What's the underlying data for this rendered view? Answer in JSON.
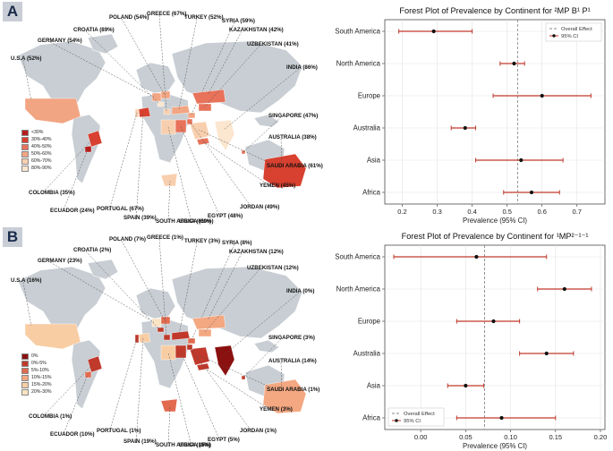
{
  "colors": {
    "ci_line": "#c0392b",
    "point": "#111111",
    "effect_line": "#888888",
    "land": "#c8ced3"
  },
  "panelA": {
    "letter": "A",
    "countries": [
      {
        "id": "usa",
        "label": "U.S.A (52%)"
      },
      {
        "id": "germany",
        "label": "GERMANY (54%)"
      },
      {
        "id": "croatia",
        "label": "CROATIA (89%)"
      },
      {
        "id": "poland",
        "label": "POLAND (54%)"
      },
      {
        "id": "greece",
        "label": "GREECE (67%)"
      },
      {
        "id": "turkey",
        "label": "TURKEY (52%)"
      },
      {
        "id": "syria",
        "label": "SYRIA (59%)"
      },
      {
        "id": "kazakhstan",
        "label": "KAZAKHSTAN (42%)"
      },
      {
        "id": "uzbekistan",
        "label": "UZBEKISTAN (41%)"
      },
      {
        "id": "india",
        "label": "INDIA (86%)"
      },
      {
        "id": "singapore",
        "label": "SINGAPORE (47%)"
      },
      {
        "id": "australia",
        "label": "AUSTRALIA (38%)"
      },
      {
        "id": "saudi",
        "label": "SAUDI ARABIA (61%)"
      },
      {
        "id": "yemen",
        "label": "YEMEN (45%)"
      },
      {
        "id": "jordan",
        "label": "JORDAN (49%)"
      },
      {
        "id": "egypt",
        "label": "EGYPT (48%)"
      },
      {
        "id": "libya",
        "label": "LIBYA (61%)"
      },
      {
        "id": "southafrica",
        "label": "SOUTH AFRICA (60%)"
      },
      {
        "id": "spain",
        "label": "SPAIN (39%)"
      },
      {
        "id": "portugal",
        "label": "PORTUGAL (67%)"
      },
      {
        "id": "ecuador",
        "label": "ECUADOR (24%)"
      },
      {
        "id": "colombia",
        "label": "COLOMBIA (35%)"
      }
    ],
    "legend": [
      {
        "label": "<30%",
        "color": "#b71c1c"
      },
      {
        "label": "30%-40%",
        "color": "#d8402f"
      },
      {
        "label": "40%-50%",
        "color": "#e8725a"
      },
      {
        "label": "50%-60%",
        "color": "#f2a583"
      },
      {
        "label": "60%-70%",
        "color": "#f8cfae"
      },
      {
        "label": "80%-90%",
        "color": "#fbe6cf"
      }
    ]
  },
  "panelB": {
    "letter": "B",
    "countries": [
      {
        "id": "usa",
        "label": "U.S.A (16%)"
      },
      {
        "id": "germany",
        "label": "GERMANY (23%)"
      },
      {
        "id": "croatia",
        "label": "CROATIA (2%)"
      },
      {
        "id": "poland",
        "label": "POLAND (7%)"
      },
      {
        "id": "greece",
        "label": "GREECE (1%)"
      },
      {
        "id": "turkey",
        "label": "TURKEY (3%)"
      },
      {
        "id": "syria",
        "label": "SYRIA (8%)"
      },
      {
        "id": "kazakhstan",
        "label": "KAZAKHSTAN (12%)"
      },
      {
        "id": "uzbekistan",
        "label": "UZBEKISTAN (12%)"
      },
      {
        "id": "india",
        "label": "INDIA (0%)"
      },
      {
        "id": "singapore",
        "label": "SINGAPORE (3%)"
      },
      {
        "id": "australia",
        "label": "AUSTRALIA (14%)"
      },
      {
        "id": "saudi",
        "label": "SAUDI ARABIA (1%)"
      },
      {
        "id": "yemen",
        "label": "YEMEN (3%)"
      },
      {
        "id": "jordan",
        "label": "JORDAN (1%)"
      },
      {
        "id": "egypt",
        "label": "EGYPT (5%)"
      },
      {
        "id": "libya",
        "label": "LIBYA (15%)"
      },
      {
        "id": "southafrica",
        "label": "SOUTH AFRICA (8%)"
      },
      {
        "id": "spain",
        "label": "SPAIN (19%)"
      },
      {
        "id": "portugal",
        "label": "PORTUGAL (1%)"
      },
      {
        "id": "ecuador",
        "label": "ECUADOR (10%)"
      },
      {
        "id": "colombia",
        "label": "COLOMBIA (1%)"
      }
    ],
    "legend": [
      {
        "label": "0%",
        "color": "#8b1010"
      },
      {
        "label": "0%-5%",
        "color": "#c0392b"
      },
      {
        "label": "5%-10%",
        "color": "#e26a4f"
      },
      {
        "label": "10%-15%",
        "color": "#f3a882"
      },
      {
        "label": "15%-20%",
        "color": "#f8cda4"
      },
      {
        "label": "20%-30%",
        "color": "#fbe3c3"
      }
    ]
  },
  "chart_data": [
    {
      "type": "forest",
      "title": "Forest Plot of Prevalence by Continent for ²MP B¹ P¹",
      "xlabel": "Prevalence (95% CI)",
      "xlim": [
        0.15,
        0.78
      ],
      "xticks": [
        0.2,
        0.3,
        0.4,
        0.5,
        0.6,
        0.7
      ],
      "xtick_labels": [
        "0.2",
        "0.3",
        "0.4",
        "0.5",
        "0.6",
        "0.7"
      ],
      "categories": [
        "South America",
        "North America",
        "Europe",
        "Australia",
        "Asia",
        "Africa"
      ],
      "estimate": [
        0.29,
        0.52,
        0.6,
        0.38,
        0.54,
        0.57
      ],
      "ci_low": [
        0.19,
        0.48,
        0.46,
        0.34,
        0.41,
        0.49
      ],
      "ci_high": [
        0.4,
        0.55,
        0.74,
        0.41,
        0.66,
        0.65
      ],
      "overall_effect": 0.53,
      "legend": {
        "position": "top-right",
        "items": [
          "Overall Effect",
          "95% CI"
        ]
      }
    },
    {
      "type": "forest",
      "title": "Forest Plot of Prevalence by Continent for ¹MP²⁻¹⁻¹",
      "xlabel": "Prevalence (95% CI)",
      "xlim": [
        -0.04,
        0.205
      ],
      "xticks": [
        0.0,
        0.05,
        0.1,
        0.15,
        0.2
      ],
      "xtick_labels": [
        "0.00",
        "0.05",
        "0.10",
        "0.15",
        "0.20"
      ],
      "categories": [
        "South America",
        "North America",
        "Europe",
        "Australia",
        "Asia",
        "Africa"
      ],
      "estimate": [
        0.062,
        0.16,
        0.081,
        0.14,
        0.05,
        0.09
      ],
      "ci_low": [
        -0.03,
        0.13,
        0.04,
        0.11,
        0.03,
        0.04
      ],
      "ci_high": [
        0.14,
        0.19,
        0.11,
        0.17,
        0.07,
        0.15
      ],
      "overall_effect": 0.071,
      "legend": {
        "position": "bottom-left",
        "items": [
          "Overall Effect",
          "95% CI"
        ]
      }
    }
  ]
}
